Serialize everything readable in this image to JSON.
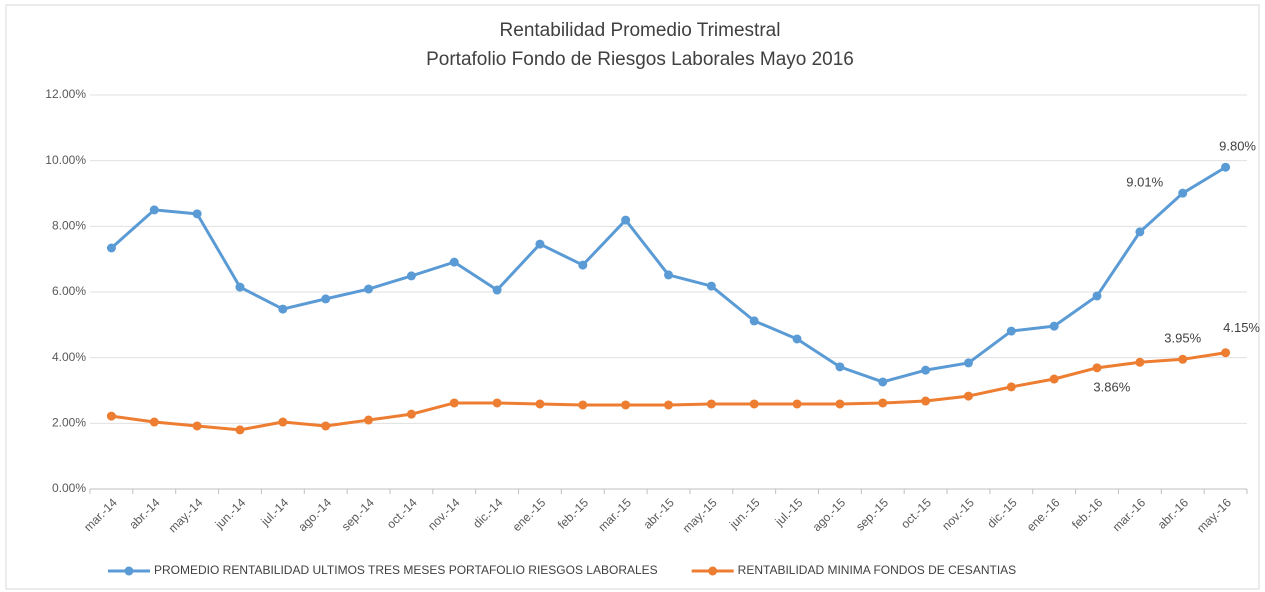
{
  "chart_data": {
    "type": "line",
    "title": "Rentabilidad Promedio Trimestral",
    "subtitle": "Portafolio Fondo de Riesgos Laborales  Mayo 2016",
    "categories": [
      "mar.-14",
      "abr.-14",
      "may.-14",
      "jun.-14",
      "jul.-14",
      "ago.-14",
      "sep.-14",
      "oct.-14",
      "nov.-14",
      "dic.-14",
      "ene.-15",
      "feb.-15",
      "mar.-15",
      "abr.-15",
      "may.-15",
      "jun.-15",
      "jul.-15",
      "ago.-15",
      "sep.-15",
      "oct.-15",
      "nov.-15",
      "dic.-15",
      "ene.-16",
      "feb.-16",
      "mar.-16",
      "abr.-16",
      "may.-16"
    ],
    "series": [
      {
        "name": "PROMEDIO RENTABILIDAD ULTIMOS TRES MESES PORTAFOLIO RIESGOS LABORALES",
        "color": "#5b9bd5",
        "values": [
          7.34,
          8.5,
          8.38,
          6.15,
          5.48,
          5.79,
          6.09,
          6.49,
          6.91,
          6.06,
          7.46,
          6.82,
          8.19,
          6.52,
          6.18,
          5.12,
          4.57,
          3.72,
          3.26,
          3.62,
          3.84,
          4.81,
          4.96,
          5.88,
          7.83,
          9.01,
          9.8
        ],
        "value_labels": [
          null,
          null,
          null,
          null,
          null,
          null,
          null,
          null,
          null,
          null,
          null,
          null,
          null,
          null,
          null,
          null,
          null,
          null,
          null,
          null,
          null,
          null,
          null,
          null,
          null,
          "9.01%",
          "9.80%"
        ]
      },
      {
        "name": "RENTABILIDAD MINIMA FONDOS DE CESANTIAS",
        "color": "#ed7d31",
        "values": [
          2.22,
          2.04,
          1.92,
          1.8,
          2.04,
          1.92,
          2.1,
          2.28,
          2.62,
          2.62,
          2.59,
          2.56,
          2.56,
          2.56,
          2.59,
          2.59,
          2.59,
          2.59,
          2.62,
          2.68,
          2.83,
          3.11,
          3.35,
          3.69,
          3.86,
          3.95,
          4.15
        ],
        "value_labels": [
          null,
          null,
          null,
          null,
          null,
          null,
          null,
          null,
          null,
          null,
          null,
          null,
          null,
          null,
          null,
          null,
          null,
          null,
          null,
          null,
          null,
          null,
          null,
          null,
          "3.86%",
          "3.95%",
          "4.15%"
        ]
      }
    ],
    "ylim": [
      0,
      12
    ],
    "yticks": [
      {
        "value": 0,
        "label": "0.00%"
      },
      {
        "value": 2,
        "label": "2.00%"
      },
      {
        "value": 4,
        "label": "4.00%"
      },
      {
        "value": 6,
        "label": "6.00%"
      },
      {
        "value": 8,
        "label": "8.00%"
      },
      {
        "value": 10,
        "label": "10.00%"
      },
      {
        "value": 12,
        "label": "12.00%"
      }
    ],
    "grid": true,
    "legend": "bottom"
  }
}
